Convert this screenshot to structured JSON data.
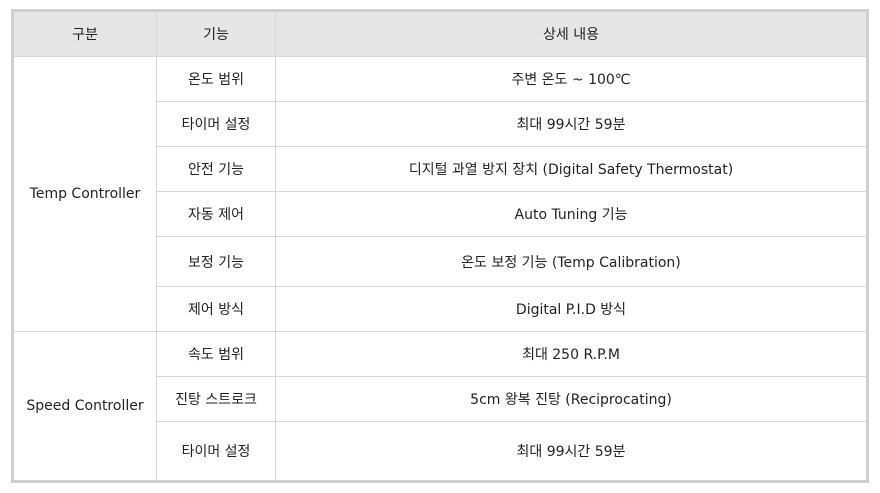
{
  "headers": [
    "구분",
    "기능",
    "상세 내용"
  ],
  "groups": [
    {
      "name": "Temp Controller",
      "rows": [
        {
          "feature": "온도 범위",
          "detail": "주변 온도 ~ 100℃"
        },
        {
          "feature": "타이머 설정",
          "detail": "최대 99시간 59분"
        },
        {
          "feature": "안전 기능",
          "detail": "디지털 과열 방지 장치 (Digital Safety Thermostat)"
        },
        {
          "feature": "자동 제어",
          "detail": "Auto Tuning 기능"
        },
        {
          "feature": "보정 기능",
          "detail": "온도 보정 기능 (Temp Calibration)"
        },
        {
          "feature": "제어 방식",
          "detail": "Digital P.I.D 방식"
        }
      ]
    },
    {
      "name": "Speed Controller",
      "rows": [
        {
          "feature": "속도 범위",
          "detail": "최대 250 R.P.M"
        },
        {
          "feature": "진탕 스트로크",
          "detail": "5cm 왕복 진탕 (Reciprocating)"
        },
        {
          "feature": "타이머 설정",
          "detail": "최대 99시간 59분"
        }
      ]
    }
  ]
}
